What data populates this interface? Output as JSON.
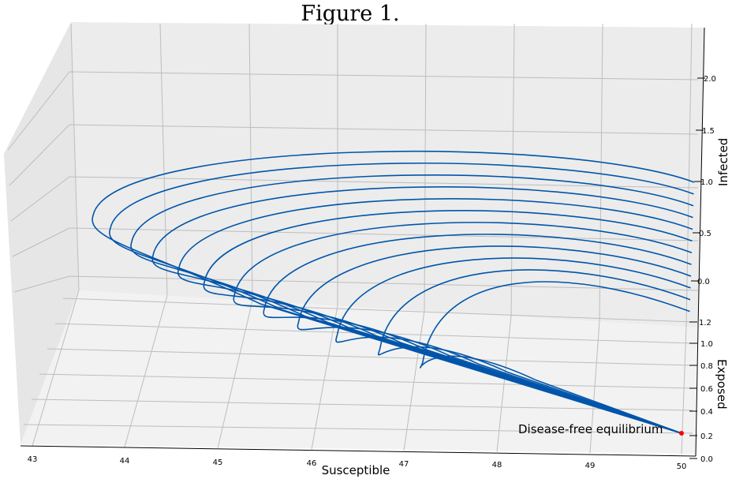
{
  "title": "Figure 1.",
  "chart_data": {
    "type": "line",
    "projection": "3d",
    "xlabel": "Susceptible",
    "ylabel": "Exposed",
    "zlabel": "Infected",
    "x_ticks": [
      "43",
      "44",
      "45",
      "46",
      "47",
      "48",
      "49",
      "50"
    ],
    "y_ticks": [
      "0.0",
      "0.2",
      "0.4",
      "0.6",
      "0.8",
      "1.0",
      "1.2"
    ],
    "z_ticks": [
      "0.0",
      "0.5",
      "1.0",
      "1.5",
      "2.0"
    ],
    "xlim": [
      42.9,
      50.2
    ],
    "grid": true,
    "series_color": "#0055aa",
    "equilibrium": {
      "label": "Disease-free equilibrium",
      "color": "#ff0000",
      "susceptible": 50,
      "exposed": 0.18,
      "infected": 0
    },
    "trajectories": [
      {
        "start_susceptible": 50.1,
        "start_infected": 1.0,
        "min_susceptible": 43.1
      },
      {
        "start_susceptible": 50.1,
        "start_infected": 0.88,
        "min_susceptible": 43.3
      },
      {
        "start_susceptible": 50.1,
        "start_infected": 0.76,
        "min_susceptible": 43.55
      },
      {
        "start_susceptible": 50.1,
        "start_infected": 0.64,
        "min_susceptible": 43.8
      },
      {
        "start_susceptible": 50.1,
        "start_infected": 0.52,
        "min_susceptible": 44.1
      },
      {
        "start_susceptible": 50.1,
        "start_infected": 0.4,
        "min_susceptible": 44.4
      },
      {
        "start_susceptible": 50.1,
        "start_infected": 0.28,
        "min_susceptible": 44.75
      },
      {
        "start_susceptible": 50.1,
        "start_infected": 0.16,
        "min_susceptible": 45.1
      },
      {
        "start_susceptible": 50.1,
        "start_infected": 0.04,
        "min_susceptible": 45.5
      },
      {
        "start_susceptible": 50.1,
        "start_infected": -0.08,
        "min_susceptible": 45.95
      },
      {
        "start_susceptible": 50.1,
        "start_infected": -0.2,
        "min_susceptible": 46.45
      },
      {
        "start_susceptible": 50.1,
        "start_infected": -0.32,
        "min_susceptible": 46.95
      }
    ]
  }
}
